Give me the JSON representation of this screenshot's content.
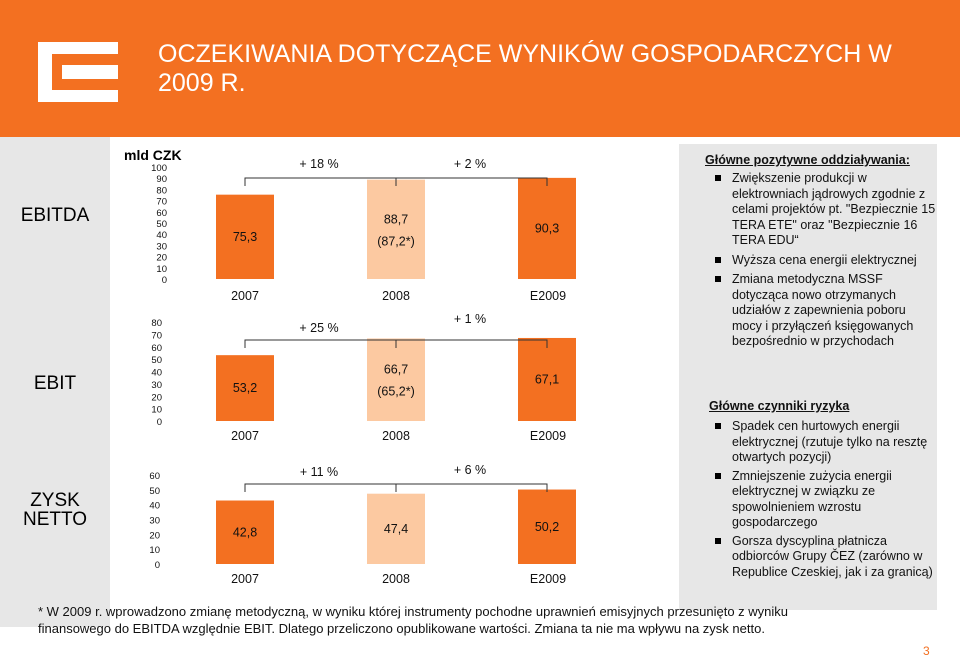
{
  "title": "OCZEKIWANIA DOTYCZĄCE WYNIKÓW GOSPODARCZYCH W 2009 R.",
  "logo": {
    "icon": "cez-logo-icon"
  },
  "unit_label": "mld CZK",
  "row_labels": {
    "ebitda": "EBITDA",
    "ebit": "EBIT",
    "zysk_line1": "ZYSK",
    "zysk_line2": "NETTO"
  },
  "colors": {
    "orange": "#f37021",
    "light_orange": "#fcc9a1",
    "gray": "#e7e7e7"
  },
  "chart_data": [
    {
      "type": "bar",
      "name": "EBITDA",
      "categories": [
        "2007",
        "2008",
        "E2009"
      ],
      "values": [
        75.3,
        88.7,
        90.3
      ],
      "value_labels": [
        "75,3",
        "88,7",
        "90,3"
      ],
      "sub_labels": [
        "",
        "(87,2*)",
        ""
      ],
      "changes": [
        "+ 18 %",
        "+ 2 %"
      ],
      "yticks": [
        "100",
        "90",
        "80",
        "70",
        "60",
        "50",
        "40",
        "30",
        "20",
        "10",
        "0"
      ],
      "ylim": [
        0,
        100
      ]
    },
    {
      "type": "bar",
      "name": "EBIT",
      "categories": [
        "2007",
        "2008",
        "E2009"
      ],
      "values": [
        53.2,
        66.7,
        67.1
      ],
      "value_labels": [
        "53,2",
        "66,7",
        "67,1"
      ],
      "sub_labels": [
        "",
        "(65,2*)",
        ""
      ],
      "changes": [
        "+ 25 %",
        "+ 1 %"
      ],
      "yticks": [
        "80",
        "70",
        "60",
        "50",
        "40",
        "30",
        "20",
        "10",
        "0"
      ],
      "ylim": [
        0,
        80
      ]
    },
    {
      "type": "bar",
      "name": "ZYSK NETTO",
      "categories": [
        "2007",
        "2008",
        "E2009"
      ],
      "values": [
        42.8,
        47.4,
        50.2
      ],
      "value_labels": [
        "42,8",
        "47,4",
        "50,2"
      ],
      "sub_labels": [
        "",
        "",
        ""
      ],
      "changes": [
        "+ 11 %",
        "+ 6 %"
      ],
      "yticks": [
        "60",
        "50",
        "40",
        "30",
        "20",
        "10",
        "0"
      ],
      "ylim": [
        0,
        60
      ]
    }
  ],
  "positives": {
    "heading": "Główne pozytywne oddziaływania:",
    "items": [
      "Zwiększenie produkcji w elektrowniach jądrowych zgodnie z celami projektów pt. \"Bezpiecznie 15 TERA ETE\" oraz \"Bezpiecznie 16 TERA EDU“",
      "Wyższa cena energii elektrycznej",
      "Zmiana metodyczna MSSF dotycząca nowo otrzymanych udziałów z zapewnienia poboru mocy i przyłączeń księgowanych bezpośrednio w przychodach"
    ]
  },
  "risks": {
    "heading": "Główne czynniki ryzyka",
    "items": [
      "Spadek cen hurtowych energii elektrycznej (rzutuje tylko na resztę otwartych pozycji)",
      "Zmniejszenie zużycia energii elektrycznej w związku ze spowolnieniem wzrostu gospodarczego",
      "Gorsza dyscyplina płatnicza odbiorców Grupy ČEZ (zarówno w Republice Czeskiej, jak i za granicą)"
    ]
  },
  "footnote": "* W 2009 r. wprowadzono zmianę metodyczną, w wyniku której instrumenty pochodne uprawnień emisyjnych przesunięto z wyniku finansowego do EBITDA względnie EBIT. Dlatego przeliczono opublikowane wartości. Zmiana ta nie ma wpływu na zysk netto.",
  "page_number": "3"
}
